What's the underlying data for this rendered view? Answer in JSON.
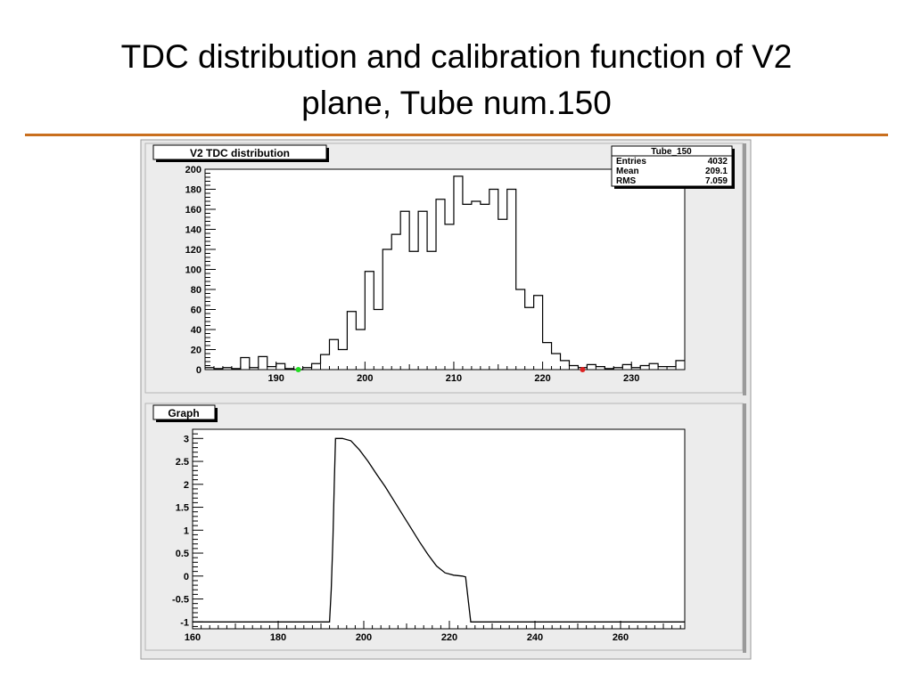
{
  "slide": {
    "title_line1": "TDC distribution and calibration function of V2",
    "title_line2": "plane, Tube num.150",
    "accent_color": "#c96f1e"
  },
  "chart_data": [
    {
      "type": "histogram",
      "title": "V2 TDC distribution",
      "xlim": [
        182,
        236
      ],
      "ylim": [
        0,
        200
      ],
      "xticks": [
        190,
        200,
        210,
        220,
        230
      ],
      "yticks": [
        0,
        20,
        40,
        60,
        80,
        100,
        120,
        140,
        160,
        180,
        200
      ],
      "bin_width": 1,
      "bin_starts": [
        182,
        183,
        184,
        185,
        186,
        187,
        188,
        189,
        190,
        191,
        192,
        193,
        194,
        195,
        196,
        197,
        198,
        199,
        200,
        201,
        202,
        203,
        204,
        205,
        206,
        207,
        208,
        209,
        210,
        211,
        212,
        213,
        214,
        215,
        216,
        217,
        218,
        219,
        220,
        221,
        222,
        223,
        224,
        225,
        226,
        227,
        228,
        229,
        230,
        231,
        232,
        233,
        234,
        235
      ],
      "counts": [
        2,
        1,
        2,
        1,
        12,
        2,
        13,
        3,
        6,
        1,
        0,
        2,
        6,
        15,
        30,
        20,
        58,
        40,
        98,
        60,
        120,
        135,
        158,
        118,
        158,
        118,
        170,
        145,
        193,
        165,
        168,
        165,
        180,
        150,
        180,
        80,
        62,
        74,
        27,
        16,
        9,
        4,
        2,
        5,
        3,
        1,
        2,
        5,
        2,
        4,
        6,
        3,
        3,
        9
      ],
      "markers": [
        {
          "x": 192.5,
          "y": 0,
          "color": "#22dd22"
        },
        {
          "x": 224.5,
          "y": 0,
          "color": "#dd2222"
        }
      ],
      "stats": {
        "name": "Tube_150",
        "rows": [
          {
            "label": "Entries",
            "value": "4032"
          },
          {
            "label": "Mean",
            "value": "209.1"
          },
          {
            "label": "RMS",
            "value": "7.059"
          }
        ]
      }
    },
    {
      "type": "line",
      "title": "Graph",
      "xlim": [
        160,
        275
      ],
      "ylim": [
        -1.15,
        3.2
      ],
      "xticks": [
        160,
        180,
        200,
        220,
        240,
        260
      ],
      "yticks": [
        -1,
        -0.5,
        0,
        0.5,
        1,
        1.5,
        2,
        2.5,
        3
      ],
      "ytick_labels": [
        "-1",
        "-0.5",
        "0",
        "0.5",
        "1",
        "1.5",
        "2",
        "2.5",
        "3"
      ],
      "points": [
        [
          160,
          -1
        ],
        [
          192,
          -1
        ],
        [
          192.4,
          -0.3
        ],
        [
          192.8,
          0.8
        ],
        [
          193.1,
          2.0
        ],
        [
          193.4,
          3.0
        ],
        [
          195,
          3.0
        ],
        [
          197,
          2.95
        ],
        [
          199,
          2.75
        ],
        [
          201,
          2.5
        ],
        [
          203,
          2.22
        ],
        [
          205,
          1.95
        ],
        [
          207,
          1.65
        ],
        [
          209,
          1.35
        ],
        [
          211,
          1.05
        ],
        [
          213,
          0.75
        ],
        [
          215,
          0.47
        ],
        [
          217,
          0.22
        ],
        [
          219,
          0.07
        ],
        [
          221,
          0.02
        ],
        [
          223,
          0.0
        ],
        [
          223.8,
          -0.02
        ],
        [
          224.5,
          -0.6
        ],
        [
          225,
          -1
        ],
        [
          275,
          -1
        ]
      ]
    }
  ]
}
